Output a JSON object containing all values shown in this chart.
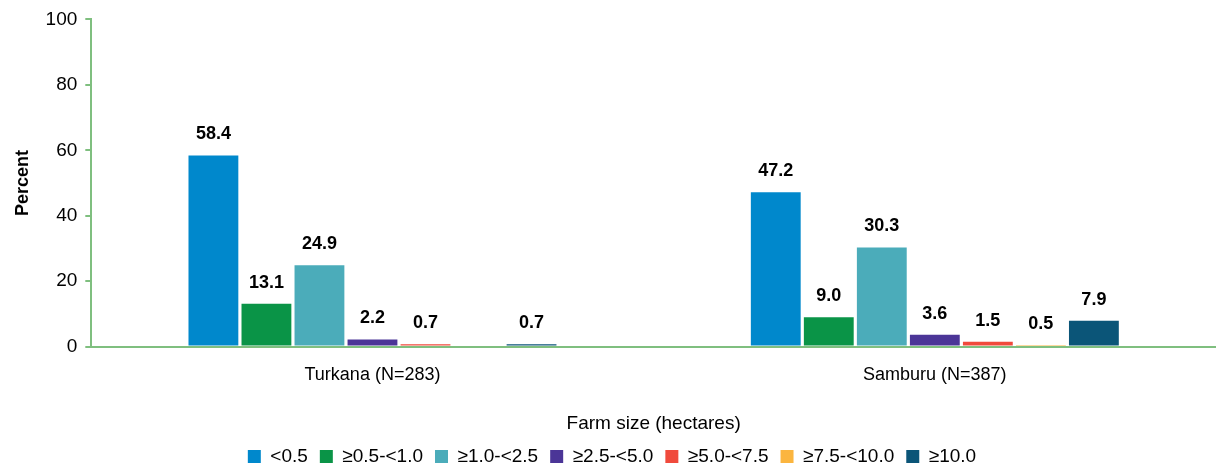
{
  "chart_data": {
    "type": "bar",
    "xlabel": "Farm size (hectares)",
    "ylabel": "Percent",
    "categories": [
      "Turkana (N=283)",
      "Samburu (N=387)"
    ],
    "series": [
      {
        "name": "<0.5",
        "color": "#0088cc",
        "values": [
          58.4,
          47.2
        ],
        "value_labels": [
          "58.4",
          "47.2"
        ]
      },
      {
        "name": "≥0.5-<1.0",
        "color": "#0a9447",
        "values": [
          13.1,
          9.0
        ],
        "value_labels": [
          "13.1",
          "9.0"
        ]
      },
      {
        "name": "≥1.0-<2.5",
        "color": "#4bacba",
        "values": [
          24.9,
          30.3
        ],
        "value_labels": [
          "24.9",
          "30.3"
        ]
      },
      {
        "name": "≥2.5-<5.0",
        "color": "#4b3597",
        "values": [
          2.2,
          3.6
        ],
        "value_labels": [
          "2.2",
          "3.6"
        ]
      },
      {
        "name": "≥5.0-<7.5",
        "color": "#f04a3c",
        "values": [
          0.7,
          1.5
        ],
        "value_labels": [
          "0.7",
          "1.5"
        ]
      },
      {
        "name": "≥7.5-<10.0",
        "color": "#fbb53f",
        "values": [
          null,
          0.5
        ],
        "value_labels": [
          null,
          "0.5"
        ]
      },
      {
        "name": "≥10.0",
        "color": "#0b5578",
        "values": [
          0.7,
          7.9
        ],
        "value_labels": [
          "0.7",
          "7.9"
        ]
      }
    ],
    "ylim": [
      0,
      100
    ],
    "yticks": [
      0,
      20,
      40,
      60,
      80,
      100
    ],
    "grid": false,
    "legend": "bottom"
  }
}
